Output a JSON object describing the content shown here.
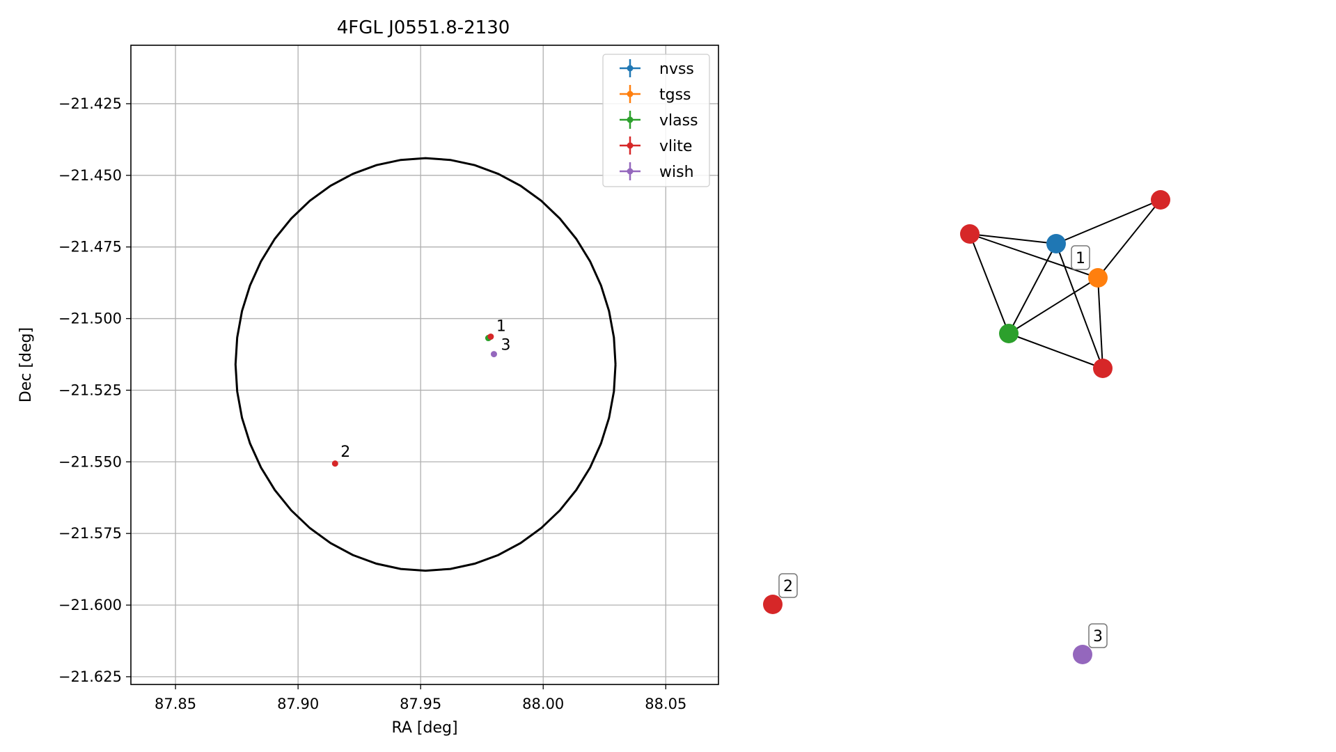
{
  "chart_data": [
    {
      "type": "scatter",
      "title": "4FGL J0551.8-2130",
      "xlabel": "RA [deg]",
      "ylabel": "Dec [deg]",
      "xlim": [
        87.8318,
        88.0715
      ],
      "ylim": [
        -21.6277,
        -21.4046
      ],
      "xticks": [
        "87.85",
        "87.90",
        "87.95",
        "88.00",
        "88.05"
      ],
      "yticks": [
        "−21.425",
        "−21.450",
        "−21.475",
        "−21.500",
        "−21.525",
        "−21.550",
        "−21.575",
        "−21.600",
        "−21.625"
      ],
      "grid": true,
      "legend_position": "top-right",
      "series": [
        {
          "name": "nvss",
          "color": "#1f77b4",
          "points": [
            [
              87.9778,
              -21.5067
            ]
          ]
        },
        {
          "name": "tgss",
          "color": "#ff7f0e",
          "points": [
            [
              87.9778,
              -21.5067
            ]
          ]
        },
        {
          "name": "vlass",
          "color": "#2ca02c",
          "points": [
            [
              87.9776,
              -21.5068
            ]
          ]
        },
        {
          "name": "vlite",
          "color": "#d62728",
          "points": [
            [
              87.9786,
              -21.5063
            ],
            [
              87.9151,
              -21.5506
            ]
          ]
        },
        {
          "name": "wish",
          "color": "#9467bd",
          "points": [
            [
              87.9799,
              -21.5124
            ]
          ]
        }
      ],
      "source_labels": [
        {
          "text": "1",
          "x": 87.9786,
          "y": -21.5063
        },
        {
          "text": "2",
          "x": 87.9151,
          "y": -21.5506
        },
        {
          "text": "3",
          "x": 87.9799,
          "y": -21.5124
        }
      ],
      "circle": {
        "ra": 87.952,
        "dec": -21.516,
        "ra_radius": 0.0775,
        "dec_radius": 0.072
      }
    },
    {
      "type": "network",
      "nodes": [
        {
          "id": "vlite-a",
          "color": "#d62728"
        },
        {
          "id": "nvss",
          "color": "#1f77b4"
        },
        {
          "id": "tgss",
          "color": "#ff7f0e",
          "label": "1"
        },
        {
          "id": "vlass",
          "color": "#2ca02c"
        },
        {
          "id": "vlite-b",
          "color": "#d62728"
        },
        {
          "id": "vlite-c",
          "color": "#d62728"
        },
        {
          "id": "vlite-2",
          "color": "#d62728",
          "label": "2"
        },
        {
          "id": "wish-3",
          "color": "#9467bd",
          "label": "3"
        }
      ],
      "edges": [
        [
          "vlite-a",
          "nvss"
        ],
        [
          "vlite-a",
          "tgss"
        ],
        [
          "vlite-a",
          "vlass"
        ],
        [
          "nvss",
          "vlite-c"
        ],
        [
          "nvss",
          "vlass"
        ],
        [
          "nvss",
          "vlite-b"
        ],
        [
          "tgss",
          "vlite-c"
        ],
        [
          "tgss",
          "vlass"
        ],
        [
          "tgss",
          "vlite-b"
        ],
        [
          "vlass",
          "vlite-b"
        ]
      ]
    }
  ]
}
